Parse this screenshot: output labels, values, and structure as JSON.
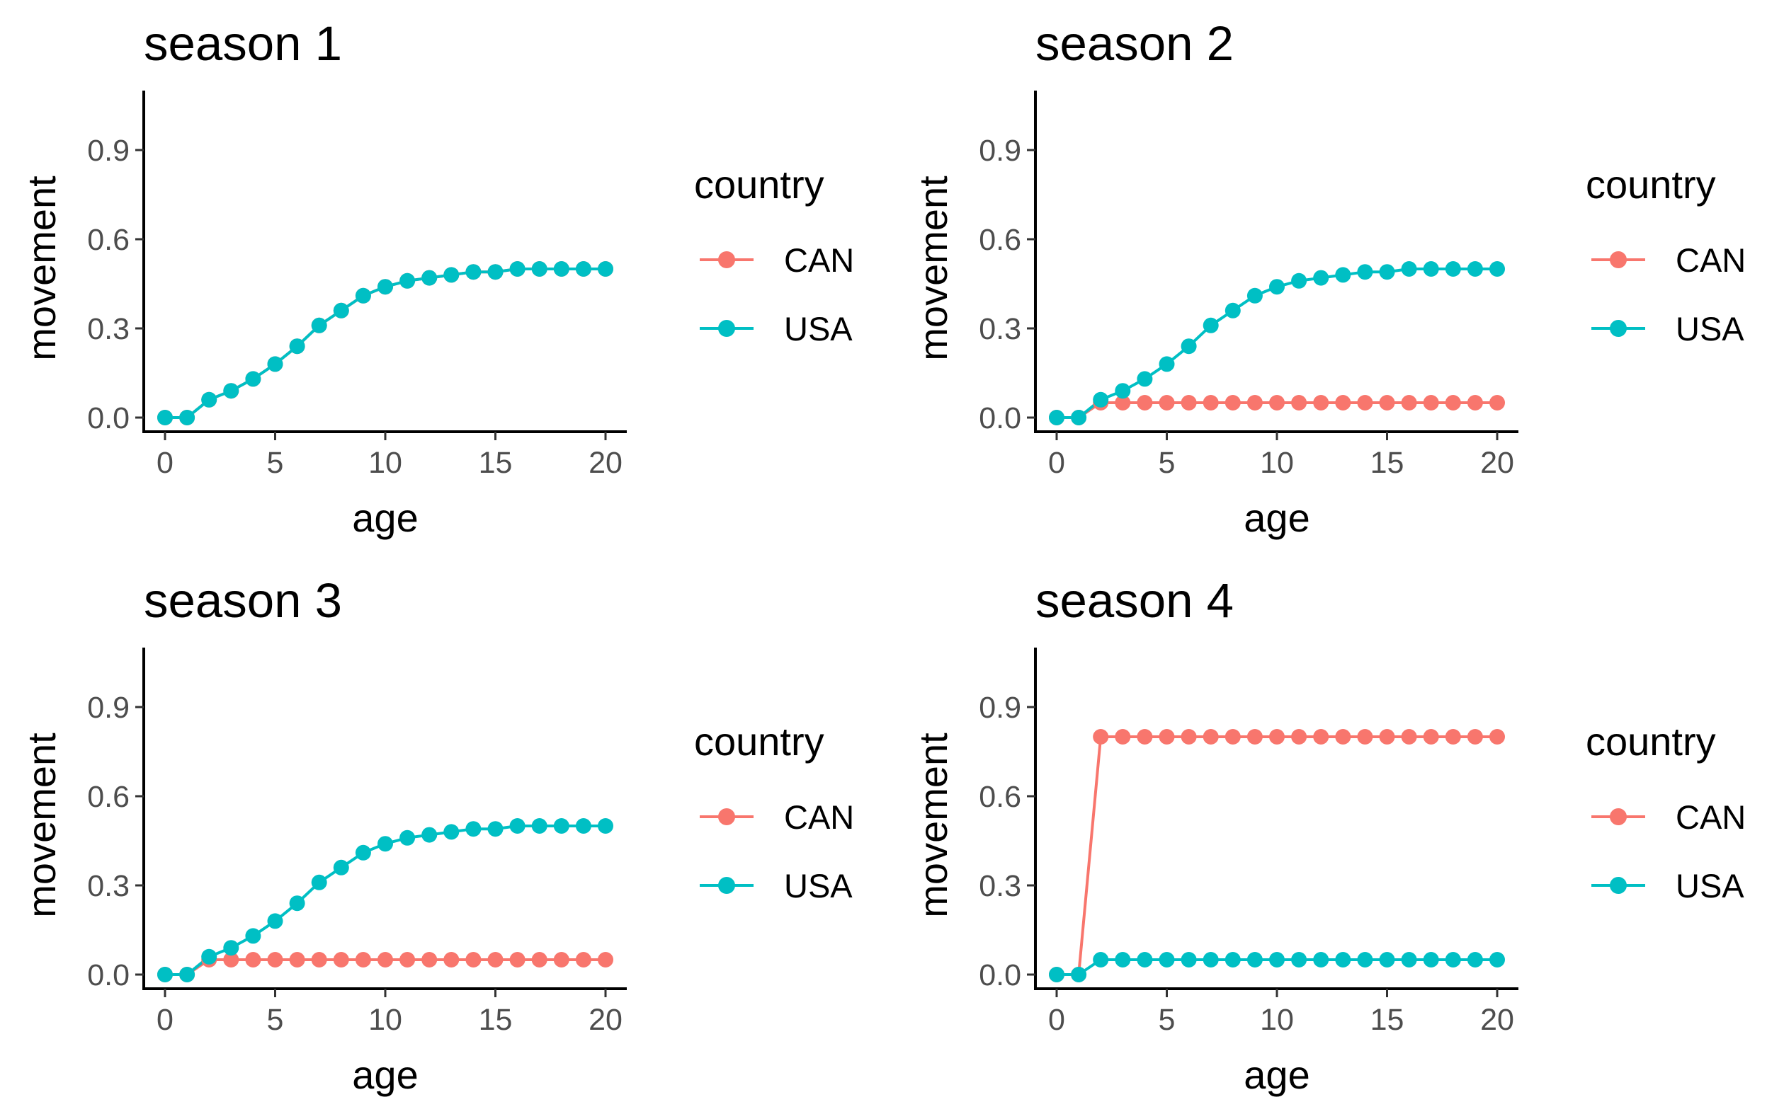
{
  "colors": {
    "CAN": "#F8766D",
    "USA": "#00BFC4",
    "axis": "#000000",
    "tick_text": "#4d4d4d"
  },
  "chart_data": [
    {
      "type": "line",
      "title": "season 1",
      "xlabel": "age",
      "ylabel": "movement",
      "xlim": [
        0,
        20
      ],
      "ylim": [
        0,
        1.1
      ],
      "xticks": [
        0,
        5,
        10,
        15,
        20
      ],
      "yticks": [
        0.0,
        0.3,
        0.6,
        0.9
      ],
      "ytick_labels": [
        "0.0",
        "0.3",
        "0.6",
        "0.9"
      ],
      "legend": {
        "title": "country",
        "position": "right"
      },
      "x": [
        0,
        1,
        2,
        3,
        4,
        5,
        6,
        7,
        8,
        9,
        10,
        11,
        12,
        13,
        14,
        15,
        16,
        17,
        18,
        19,
        20
      ],
      "series": [
        {
          "name": "CAN",
          "values": [
            0,
            0,
            0.06,
            0.09,
            0.13,
            0.18,
            0.24,
            0.31,
            0.36,
            0.41,
            0.44,
            0.46,
            0.47,
            0.48,
            0.49,
            0.49,
            0.5,
            0.5,
            0.5,
            0.5,
            0.5
          ]
        },
        {
          "name": "USA",
          "values": [
            0,
            0,
            0.06,
            0.09,
            0.13,
            0.18,
            0.24,
            0.31,
            0.36,
            0.41,
            0.44,
            0.46,
            0.47,
            0.48,
            0.49,
            0.49,
            0.5,
            0.5,
            0.5,
            0.5,
            0.5
          ]
        }
      ]
    },
    {
      "type": "line",
      "title": "season 2",
      "xlabel": "age",
      "ylabel": "movement",
      "xlim": [
        0,
        20
      ],
      "ylim": [
        0,
        1.1
      ],
      "xticks": [
        0,
        5,
        10,
        15,
        20
      ],
      "yticks": [
        0.0,
        0.3,
        0.6,
        0.9
      ],
      "ytick_labels": [
        "0.0",
        "0.3",
        "0.6",
        "0.9"
      ],
      "legend": {
        "title": "country",
        "position": "right"
      },
      "x": [
        0,
        1,
        2,
        3,
        4,
        5,
        6,
        7,
        8,
        9,
        10,
        11,
        12,
        13,
        14,
        15,
        16,
        17,
        18,
        19,
        20
      ],
      "series": [
        {
          "name": "CAN",
          "values": [
            0,
            0,
            0.05,
            0.05,
            0.05,
            0.05,
            0.05,
            0.05,
            0.05,
            0.05,
            0.05,
            0.05,
            0.05,
            0.05,
            0.05,
            0.05,
            0.05,
            0.05,
            0.05,
            0.05,
            0.05
          ]
        },
        {
          "name": "USA",
          "values": [
            0,
            0,
            0.06,
            0.09,
            0.13,
            0.18,
            0.24,
            0.31,
            0.36,
            0.41,
            0.44,
            0.46,
            0.47,
            0.48,
            0.49,
            0.49,
            0.5,
            0.5,
            0.5,
            0.5,
            0.5
          ]
        }
      ]
    },
    {
      "type": "line",
      "title": "season 3",
      "xlabel": "age",
      "ylabel": "movement",
      "xlim": [
        0,
        20
      ],
      "ylim": [
        0,
        1.1
      ],
      "xticks": [
        0,
        5,
        10,
        15,
        20
      ],
      "yticks": [
        0.0,
        0.3,
        0.6,
        0.9
      ],
      "ytick_labels": [
        "0.0",
        "0.3",
        "0.6",
        "0.9"
      ],
      "legend": {
        "title": "country",
        "position": "right"
      },
      "x": [
        0,
        1,
        2,
        3,
        4,
        5,
        6,
        7,
        8,
        9,
        10,
        11,
        12,
        13,
        14,
        15,
        16,
        17,
        18,
        19,
        20
      ],
      "series": [
        {
          "name": "CAN",
          "values": [
            0,
            0,
            0.05,
            0.05,
            0.05,
            0.05,
            0.05,
            0.05,
            0.05,
            0.05,
            0.05,
            0.05,
            0.05,
            0.05,
            0.05,
            0.05,
            0.05,
            0.05,
            0.05,
            0.05,
            0.05
          ]
        },
        {
          "name": "USA",
          "values": [
            0,
            0,
            0.06,
            0.09,
            0.13,
            0.18,
            0.24,
            0.31,
            0.36,
            0.41,
            0.44,
            0.46,
            0.47,
            0.48,
            0.49,
            0.49,
            0.5,
            0.5,
            0.5,
            0.5,
            0.5
          ]
        }
      ]
    },
    {
      "type": "line",
      "title": "season 4",
      "xlabel": "age",
      "ylabel": "movement",
      "xlim": [
        0,
        20
      ],
      "ylim": [
        0,
        1.1
      ],
      "xticks": [
        0,
        5,
        10,
        15,
        20
      ],
      "yticks": [
        0.0,
        0.3,
        0.6,
        0.9
      ],
      "ytick_labels": [
        "0.0",
        "0.3",
        "0.6",
        "0.9"
      ],
      "legend": {
        "title": "country",
        "position": "right"
      },
      "x": [
        0,
        1,
        2,
        3,
        4,
        5,
        6,
        7,
        8,
        9,
        10,
        11,
        12,
        13,
        14,
        15,
        16,
        17,
        18,
        19,
        20
      ],
      "series": [
        {
          "name": "CAN",
          "values": [
            0,
            0,
            0.8,
            0.8,
            0.8,
            0.8,
            0.8,
            0.8,
            0.8,
            0.8,
            0.8,
            0.8,
            0.8,
            0.8,
            0.8,
            0.8,
            0.8,
            0.8,
            0.8,
            0.8,
            0.8
          ]
        },
        {
          "name": "USA",
          "values": [
            0,
            0,
            0.05,
            0.05,
            0.05,
            0.05,
            0.05,
            0.05,
            0.05,
            0.05,
            0.05,
            0.05,
            0.05,
            0.05,
            0.05,
            0.05,
            0.05,
            0.05,
            0.05,
            0.05,
            0.05
          ]
        }
      ]
    }
  ]
}
